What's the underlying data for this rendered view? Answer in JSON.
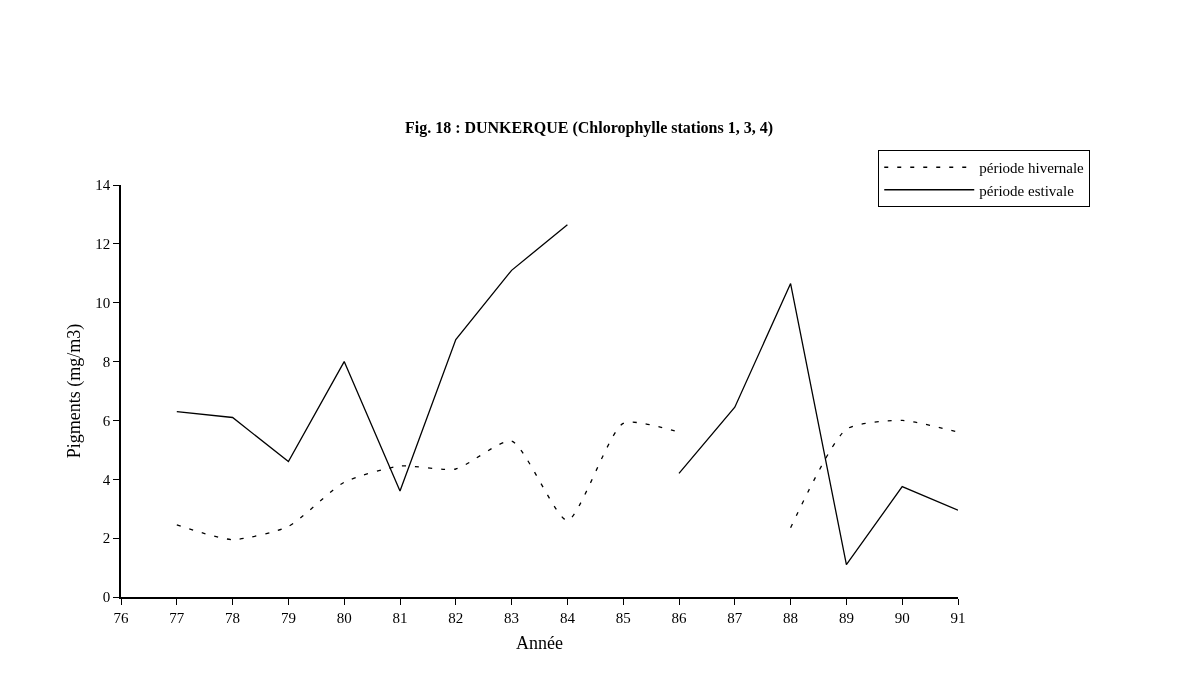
{
  "chart_data": {
    "type": "line",
    "title": "Fig. 18 : DUNKERQUE (Chlorophylle stations 1, 3, 4)",
    "xlabel": "Année",
    "ylabel": "Pigments (mg/m3)",
    "x": [
      77,
      78,
      79,
      80,
      81,
      82,
      83,
      84,
      85,
      86,
      87,
      88,
      89,
      90,
      91
    ],
    "series": [
      {
        "name": "période hivernale",
        "color": "#000000",
        "line_style": "dashed",
        "values": [
          2.45,
          1.95,
          2.4,
          3.9,
          4.45,
          4.35,
          5.3,
          2.6,
          5.9,
          5.6,
          null,
          2.35,
          5.7,
          6.0,
          5.6
        ]
      },
      {
        "name": "période estivale",
        "color": "#000000",
        "line_style": "solid",
        "values": [
          6.3,
          6.1,
          4.6,
          8.0,
          3.6,
          8.75,
          11.1,
          12.65,
          null,
          4.2,
          6.45,
          10.65,
          1.1,
          3.75,
          2.95
        ]
      }
    ],
    "xlim": [
      76,
      91
    ],
    "xticks": [
      76,
      77,
      78,
      79,
      80,
      81,
      82,
      83,
      84,
      85,
      86,
      87,
      88,
      89,
      90,
      91
    ],
    "ylim": [
      0,
      14
    ],
    "yticks": [
      0,
      2,
      4,
      6,
      8,
      10,
      12,
      14
    ],
    "grid": false,
    "legend": "top right",
    "marker": "none"
  }
}
